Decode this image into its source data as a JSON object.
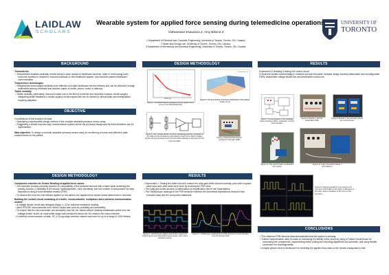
{
  "header": {
    "title": "Wearable system for applied force sensing during telemedicine operations",
    "authors": "Vishweswar Eswaran1,2, Amy Bilton2,3",
    "affiliations": [
      "1 Department of Electrical and Computer Engineering, University of Toronto, Toronto, ON, Canada;",
      "2 Water and Energy Lab, University of Toronto, Toronto, ON, Canada;",
      "3 Department of Mechanical and Industrial Engineering, University of Toronto, Toronto, ON, Canada;"
    ],
    "laidlaw_name": "LAIDLAW",
    "laidlaw_sub": "SCHOLARS",
    "uoft_top": "UNIVERSITY OF",
    "uoft_name": "TORONTO",
    "navy": "#1f3f63",
    "uoft_blue": "#25355a"
  },
  "sections": {
    "background": "BACKGROUND",
    "objective": "OBJECTIVE",
    "design_methodology_left": "DESIGN METHODOLOGY",
    "design_methodology_mid": "DESIGN METHODOLOGY",
    "results_mid": "RESULTS",
    "results_right": "RESULTS",
    "conclusions": "CONCLUSIONS"
  },
  "background": {
    "h1": "Telemedicine",
    "p1": "Telemedicine enables medically remote areas to have access to healthcare services, helps in overcoming socio economic barriers to treatment, reduces workload on the healthcare system, and improves patient-healthcare communication",
    "h2": "Telepresence technologies",
    "p2": "Telepresence technologies facilitate more effective and safer healthcare service delivery and can be achieved through multimedia sensory feedback that involves haptic or tactile, sound, vision or olfactory.",
    "h3": "Tactile modality",
    "p3": "Tactile modality, particularly, has found wider use in the field of medicine and minimally invasive robotic surgery. Integrating tactile feedback in robotic surgery would expand the role of robotics in clinical tests and examinations requiring palpation."
  },
  "objective": {
    "intro": "Contributions of this research include:",
    "b1": "Specifying a reproducible design method of the modular wearable pressure sensor array.",
    "b2": "Suggesting a closed loop two-way communication system where the produced design and its future iterations can be implemented.",
    "aim_label": "Main objective:",
    "aim": "To design a modular wearable pressure sensor array for monitoring a human and effector's palm contact forces on the patient"
  },
  "methodology_left": {
    "h1": "Component selection for Sensor Reading of applied force values",
    "b1": "The selection process primarily focused on compatibility of the pressure sensors with a fabric while achieving the primary function 1 (flexibility of the sensor, lightweightness, force sensitivity, and low number of components for data acquisition) using a force sensitive resistor (FSR)",
    "b2": "To deduce the force the end effector applies on the patient, the applied force values needs determined in real time.",
    "h2": "Building the control circuit consisting of a buffer, microcontroller, multiplexer and a wireless communication module.",
    "b3": "A voltage divider circuit was designed (figure 1, 3) for real-time resistance reading",
    "b4": "Atm2-RP2040 microcontroller from Seeed Studio was used for portability and wearability",
    "b5": "To ensure that the microcontroller can accurately read the Vin values without drawing substantial current from the voltage divider circuit, an input buffer stage was introduced before the Vin reaches the microcontroller.",
    "b6": "A wireless communication module, HC-12 long-range wireless module was used for up to a range of 1000 Meters."
  },
  "methodology_mid": {
    "fig1_cap": "Figure 1: Force/Resistance resistance sensor applied force curve of the FSR (Model 402)",
    "fig2_cap": "Figure 2: Vin as a function of the two resistances in the voltage divider circuit",
    "fig3_cap": "Figure 3: Left: Voltage divider circuit for calculating real-time resistance of the FSR and hence deducing the applied contact force. Right: Voltage divider circuit connected to the Op-Amp buffer package in the input into the microcontroller",
    "fig4_cap": "Figure 4: Experimental setup for testing the unity gain buffer",
    "fig1_xlabel": "Force (g)",
    "fig2_legend": "Y consistent at 3"
  },
  "results_mid": {
    "b1": "Experiment 1: Testing the buffer circuit to ensure the unity gain buffer worked correctly once with a square wave input and other tests were done by touching the FSR units",
    "b2": "The unity-gain buffer showed no attenuation or amplification hence met expectations",
    "b3": "The Oscilloscope readings of the FSR behavior matched the theoretical expectations deduced from Kirchoff's laws and the component datasheet",
    "fig5_cap": "Figure 5 : Oscilloscope reading of the buffer output and original signal input (blue/yellow input signal); other colors buffered outputs)",
    "fig6_cap": "Figure 6 : Oscilloscope readings of the FSR response to touch stimulus from the human hand"
  },
  "results_right": {
    "intro": "Experiment 2: Building & testing the control circuit",
    "p": "To build the system incrementally in modules and test the same. Modular design involved detachable and reconfigurable FSRs, detachable voltage divider bar and detachable control unit.",
    "fig7_cap": "Figure 7: Circuit diagram of the wearable device showing buffers, multiplexer and the microcontroller",
    "fig8_cap": "Figure 8: Module 1 with the detachable FSRs",
    "fig9_cap": "Figure 9: Module 2 Top and side view of the control device",
    "fig11_cap": "Figure 11: The control system embedded into a glove",
    "fig10_cap": "Figure 10: Fully connected module 1 and module 2",
    "fig12_cap": "Figure 12: Signal received by the receiving unit from one of the FSRs on the glove. A difference in the pulse pattern correlates to the force on the four plots"
  },
  "conclusions": {
    "b1": "The observed FSR stimulus data demonstrates that the system is working.",
    "b2": "Further improvements have to made on increasing the fidelity of the circuit by using a Printed Circuit Board for connecting the components, implementing better polling and encoding algorithms and schemes, and using flexible connectors for reconfigurability.",
    "b3": "A haptic gloves need to developed for rendering the applied force data on the remote manipulator's side."
  }
}
